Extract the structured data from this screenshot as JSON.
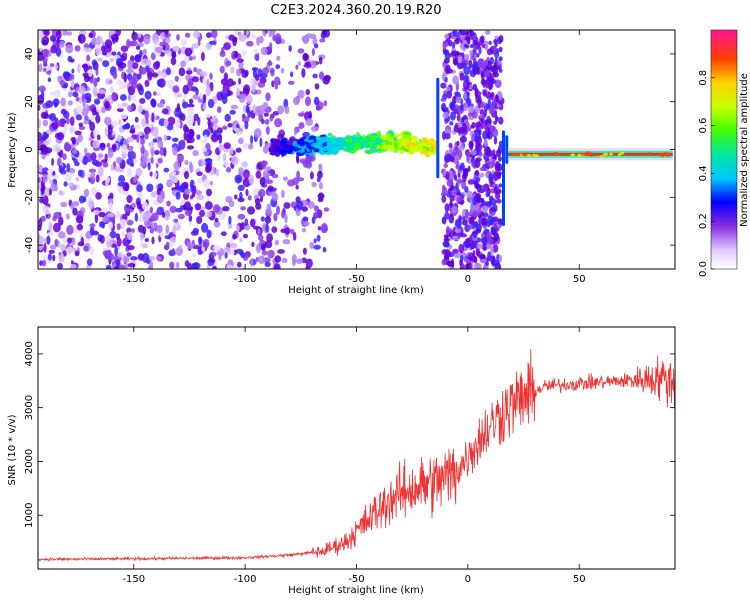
{
  "title": "C2E3.2024.360.20.19.R20",
  "chart_data": [
    {
      "type": "heatmap",
      "xlabel": "Height of straight line (km)",
      "ylabel": "Frequency (Hz)",
      "xlim": [
        -193,
        93
      ],
      "ylim": [
        -50,
        50
      ],
      "xticks": [
        -150,
        -100,
        -50,
        0,
        50
      ],
      "yticks": [
        -40,
        -20,
        0,
        20,
        40
      ],
      "colorbar": {
        "label": "Normalized spectral amplitude",
        "range": [
          0,
          1
        ],
        "ticks": [
          0.0,
          0.2,
          0.4,
          0.6,
          0.8
        ]
      },
      "features": [
        {
          "description": "broadband scatter",
          "x_range": [
            -193,
            -65
          ],
          "freq_range": [
            -50,
            50
          ]
        },
        {
          "description": "signal band",
          "x_range": [
            -88,
            -15
          ],
          "freq_center": [
            -1,
            6
          ]
        },
        {
          "description": "broadband burst",
          "x_range": [
            -12,
            15
          ],
          "freq_range": [
            -50,
            50
          ]
        },
        {
          "description": "strong carrier",
          "x_range": [
            18,
            92
          ],
          "freq_center": -2
        }
      ]
    },
    {
      "type": "line",
      "xlabel": "Height of straight line (km)",
      "ylabel": "SNR (10 * v/v)",
      "xlim": [
        -193,
        93
      ],
      "ylim": [
        0,
        4500
      ],
      "xticks": [
        -150,
        -100,
        -50,
        0,
        50
      ],
      "yticks": [
        1000,
        2000,
        3000,
        4000
      ],
      "color": "#ee3333",
      "trend": {
        "x": [
          -193,
          -150,
          -100,
          -80,
          -65,
          -55,
          -45,
          -35,
          -25,
          -15,
          -5,
          5,
          15,
          25,
          35,
          50,
          70,
          85,
          93
        ],
        "y": [
          180,
          190,
          210,
          260,
          330,
          500,
          900,
          1300,
          1500,
          1600,
          1800,
          2400,
          2900,
          3200,
          3400,
          3450,
          3500,
          3550,
          3500
        ]
      }
    }
  ]
}
